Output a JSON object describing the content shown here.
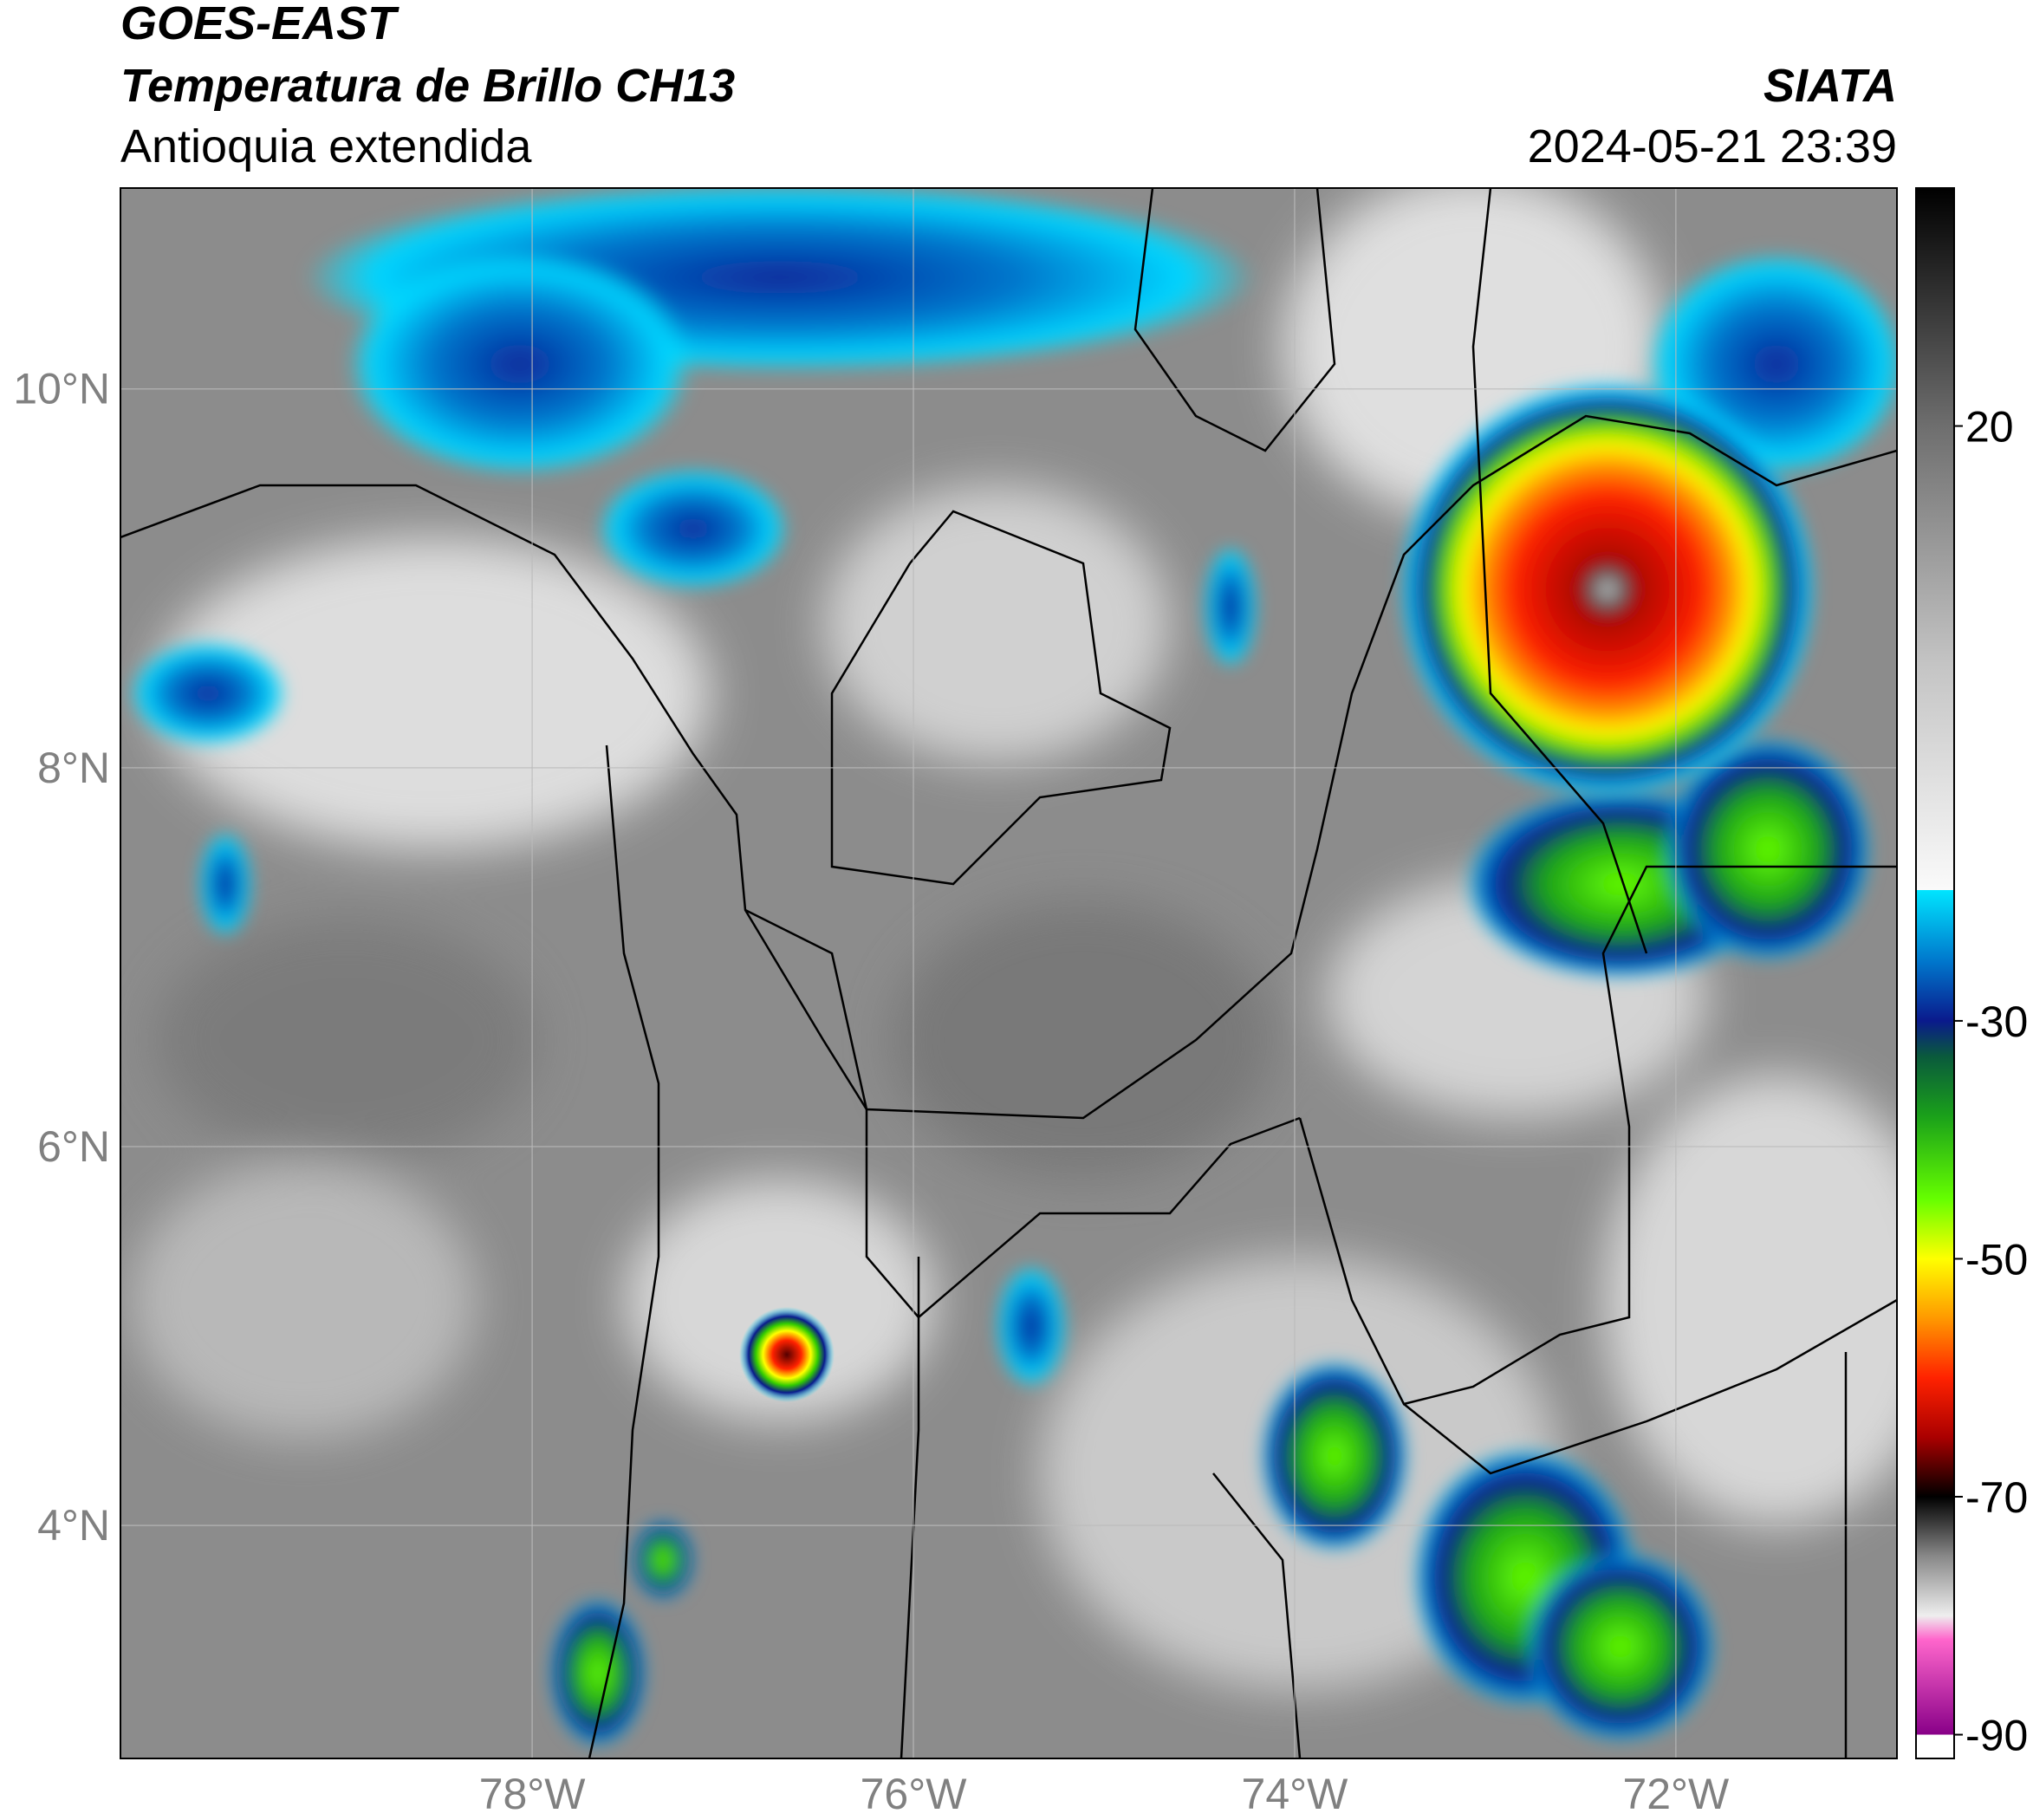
{
  "header": {
    "satellite": "GOES-EAST",
    "product": "Temperatura de Brillo CH13",
    "region": "Antioquia extendida",
    "source": "SIATA",
    "datetime": "2024-05-21 23:39"
  },
  "map": {
    "lat_range": [
      2.77,
      11.06
    ],
    "lon_range": [
      -80.16,
      -70.84
    ],
    "lat_ticks": [
      {
        "value": 4,
        "label": "4°N"
      },
      {
        "value": 6,
        "label": "6°N"
      },
      {
        "value": 8,
        "label": "8°N"
      },
      {
        "value": 10,
        "label": "10°N"
      }
    ],
    "lon_ticks": [
      {
        "value": -78,
        "label": "78°W"
      },
      {
        "value": -76,
        "label": "76°W"
      },
      {
        "value": -74,
        "label": "74°W"
      },
      {
        "value": -72,
        "label": "72°W"
      }
    ]
  },
  "colorbar": {
    "range": [
      -92,
      40
    ],
    "ticks": [
      20,
      -30,
      -50,
      -70,
      -90
    ],
    "stops": [
      {
        "value": 40,
        "color": "#000000"
      },
      {
        "value": 20,
        "color": "#6e6e6e"
      },
      {
        "value": 0,
        "color": "#c4c4c4"
      },
      {
        "value": -19,
        "color": "#fafafa"
      },
      {
        "value": -19,
        "color": "#00e5ff"
      },
      {
        "value": -25,
        "color": "#0077cc"
      },
      {
        "value": -30,
        "color": "#0a1a8c"
      },
      {
        "value": -33,
        "color": "#0a5a3c"
      },
      {
        "value": -38,
        "color": "#1aa01a"
      },
      {
        "value": -45,
        "color": "#66ff00"
      },
      {
        "value": -50,
        "color": "#ffff00"
      },
      {
        "value": -55,
        "color": "#ff9900"
      },
      {
        "value": -60,
        "color": "#ff2200"
      },
      {
        "value": -65,
        "color": "#aa0000"
      },
      {
        "value": -70,
        "color": "#000000"
      },
      {
        "value": -75,
        "color": "#888888"
      },
      {
        "value": -80,
        "color": "#eeeeee"
      },
      {
        "value": -82,
        "color": "#ff66cc"
      },
      {
        "value": -90,
        "color": "#880088"
      },
      {
        "value": -90,
        "color": "#ffffff"
      },
      {
        "value": -92,
        "color": "#ffffff"
      }
    ]
  }
}
